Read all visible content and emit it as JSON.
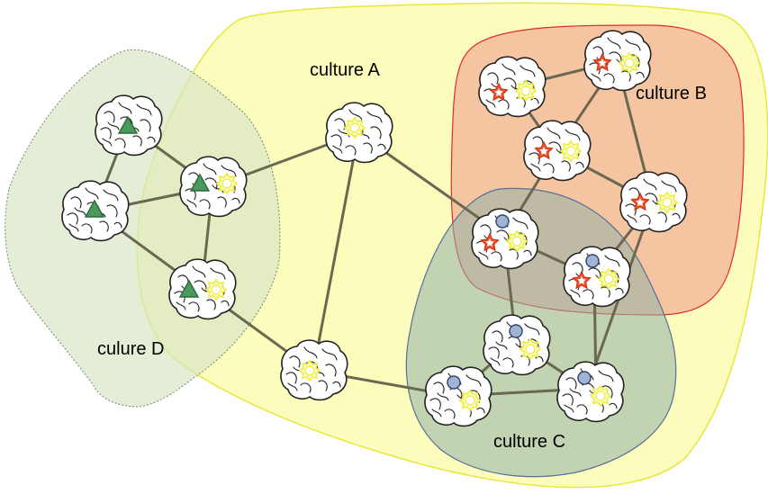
{
  "labels": {
    "culture_a": "culture A",
    "culture_b": "culture B",
    "culture_c": "culture C",
    "culture_d": "culure D"
  },
  "colors": {
    "culture_a_fill": "#fbfbb2",
    "culture_a_stroke": "#e7e73a",
    "culture_b_fill": "#f3c2a6",
    "culture_b_stroke": "#e32b2b",
    "culture_c_fill": "#b8cbb8",
    "culture_c_stroke": "#5a6e96",
    "culture_d_fill": "#d9e5c5",
    "culture_d_stroke": "#6e8a6e",
    "edge": "#6b6852",
    "triangle": "#4a9a5e",
    "star": "#ee5533",
    "circle": "#9fb4d6",
    "sun": "#eeee44"
  },
  "icons": {
    "node": "brain-icon",
    "culture_a_marker": "sun-icon",
    "culture_b_marker": "star-icon",
    "culture_c_marker": "circle-icon",
    "culture_d_marker": "triangle-icon"
  }
}
